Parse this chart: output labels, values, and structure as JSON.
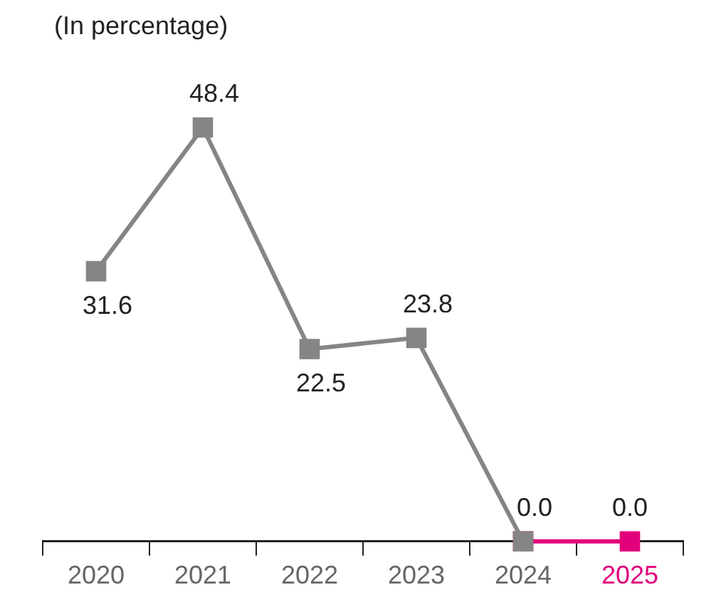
{
  "chart_data": {
    "type": "line",
    "subtitle": "(In percentage)",
    "categories": [
      "2020",
      "2021",
      "2022",
      "2023",
      "2024",
      "2025"
    ],
    "series": [
      {
        "color": "#858585",
        "values": [
          31.6,
          48.4,
          22.5,
          23.8,
          0.0,
          null
        ],
        "value_labels": [
          "31.6",
          "48.4",
          "22.5",
          "23.8",
          "0.0",
          null
        ]
      },
      {
        "color": "#e2007a",
        "values": [
          null,
          null,
          null,
          null,
          0.0,
          0.0
        ],
        "value_labels": [
          null,
          null,
          null,
          null,
          null,
          "0.0"
        ]
      }
    ],
    "marker": "square",
    "line_style": "solid",
    "grid": false,
    "legend": false,
    "tick_labels": "x"
  }
}
